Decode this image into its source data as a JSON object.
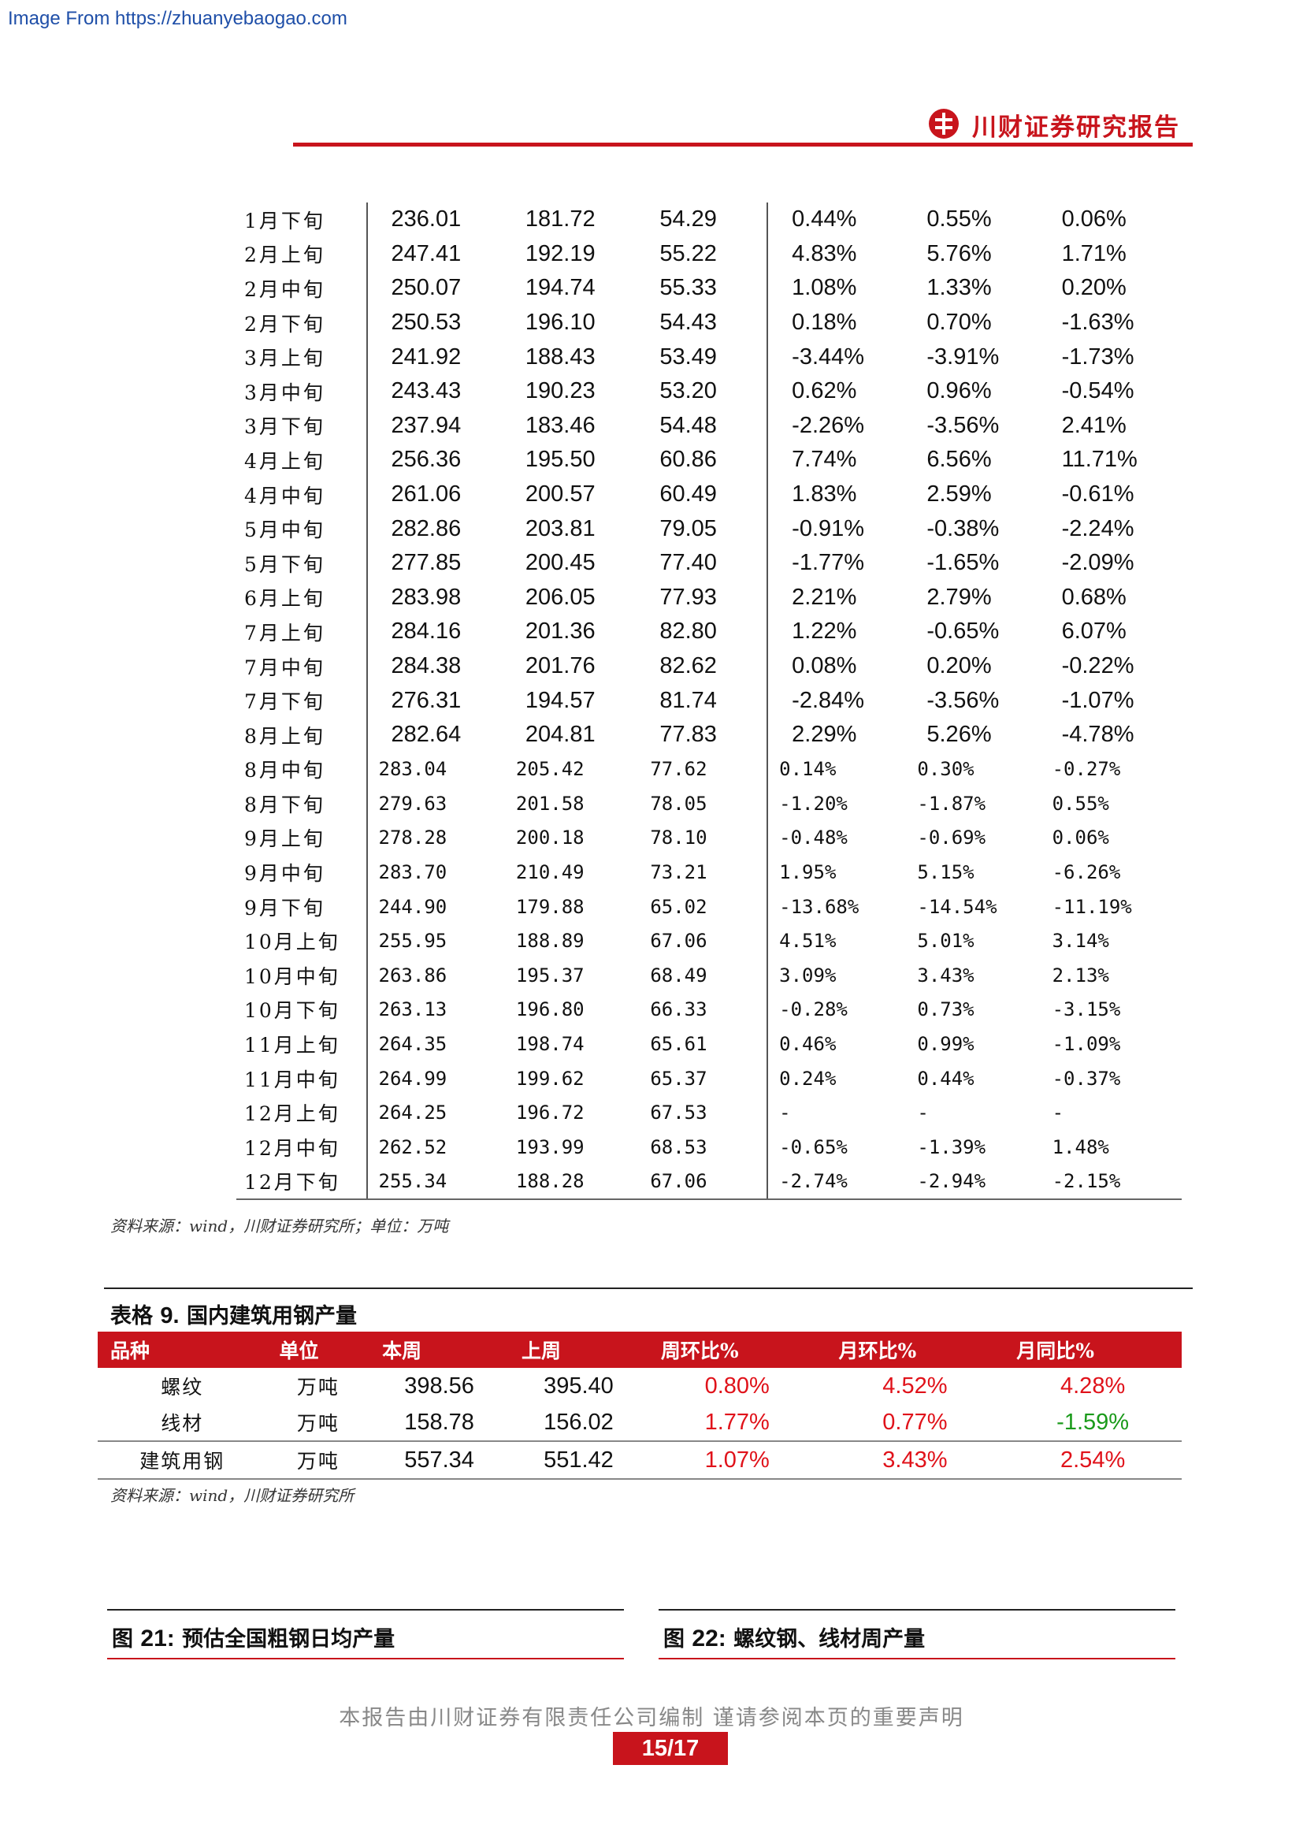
{
  "watermark": "Image From https://zhuanyebaogao.com",
  "header": {
    "brand": "川财证券研究报告"
  },
  "table1": {
    "rows": [
      {
        "period": "1月下旬",
        "a": "236.01",
        "b": "181.72",
        "c": "54.29",
        "d": "0.44%",
        "e": "0.55%",
        "f": "0.06%"
      },
      {
        "period": "2月上旬",
        "a": "247.41",
        "b": "192.19",
        "c": "55.22",
        "d": "4.83%",
        "e": "5.76%",
        "f": "1.71%"
      },
      {
        "period": "2月中旬",
        "a": "250.07",
        "b": "194.74",
        "c": "55.33",
        "d": "1.08%",
        "e": "1.33%",
        "f": "0.20%"
      },
      {
        "period": "2月下旬",
        "a": "250.53",
        "b": "196.10",
        "c": "54.43",
        "d": "0.18%",
        "e": "0.70%",
        "f": "-1.63%"
      },
      {
        "period": "3月上旬",
        "a": "241.92",
        "b": "188.43",
        "c": "53.49",
        "d": "-3.44%",
        "e": "-3.91%",
        "f": "-1.73%"
      },
      {
        "period": "3月中旬",
        "a": "243.43",
        "b": "190.23",
        "c": "53.20",
        "d": "0.62%",
        "e": "0.96%",
        "f": "-0.54%"
      },
      {
        "period": "3月下旬",
        "a": "237.94",
        "b": "183.46",
        "c": "54.48",
        "d": "-2.26%",
        "e": "-3.56%",
        "f": "2.41%"
      },
      {
        "period": "4月上旬",
        "a": "256.36",
        "b": "195.50",
        "c": "60.86",
        "d": "7.74%",
        "e": "6.56%",
        "f": "11.71%"
      },
      {
        "period": "4月中旬",
        "a": "261.06",
        "b": "200.57",
        "c": "60.49",
        "d": "1.83%",
        "e": "2.59%",
        "f": "-0.61%"
      },
      {
        "period": "5月中旬",
        "a": "282.86",
        "b": "203.81",
        "c": "79.05",
        "d": "-0.91%",
        "e": "-0.38%",
        "f": "-2.24%"
      },
      {
        "period": "5月下旬",
        "a": "277.85",
        "b": "200.45",
        "c": "77.40",
        "d": "-1.77%",
        "e": "-1.65%",
        "f": "-2.09%"
      },
      {
        "period": "6月上旬",
        "a": "283.98",
        "b": "206.05",
        "c": "77.93",
        "d": "2.21%",
        "e": "2.79%",
        "f": "0.68%"
      },
      {
        "period": "7月上旬",
        "a": "284.16",
        "b": "201.36",
        "c": "82.80",
        "d": "1.22%",
        "e": "-0.65%",
        "f": "6.07%"
      },
      {
        "period": "7月中旬",
        "a": "284.38",
        "b": "201.76",
        "c": "82.62",
        "d": "0.08%",
        "e": "0.20%",
        "f": "-0.22%"
      },
      {
        "period": "7月下旬",
        "a": "276.31",
        "b": "194.57",
        "c": "81.74",
        "d": "-2.84%",
        "e": "-3.56%",
        "f": "-1.07%"
      },
      {
        "period": "8月上旬",
        "a": "282.64",
        "b": "204.81",
        "c": "77.83",
        "d": "2.29%",
        "e": "5.26%",
        "f": "-4.78%"
      },
      {
        "period": "8月中旬",
        "a": "283.04",
        "b": "205.42",
        "c": "77.62",
        "d": "0.14%",
        "e": "0.30%",
        "f": "-0.27%"
      },
      {
        "period": "8月下旬",
        "a": "279.63",
        "b": "201.58",
        "c": "78.05",
        "d": "-1.20%",
        "e": "-1.87%",
        "f": "0.55%"
      },
      {
        "period": "9月上旬",
        "a": "278.28",
        "b": "200.18",
        "c": "78.10",
        "d": "-0.48%",
        "e": "-0.69%",
        "f": "0.06%"
      },
      {
        "period": "9月中旬",
        "a": "283.70",
        "b": "210.49",
        "c": "73.21",
        "d": "1.95%",
        "e": "5.15%",
        "f": "-6.26%"
      },
      {
        "period": "9月下旬",
        "a": "244.90",
        "b": "179.88",
        "c": "65.02",
        "d": "-13.68%",
        "e": "-14.54%",
        "f": "-11.19%"
      },
      {
        "period": "10月上旬",
        "a": "255.95",
        "b": "188.89",
        "c": "67.06",
        "d": "4.51%",
        "e": "5.01%",
        "f": "3.14%"
      },
      {
        "period": "10月中旬",
        "a": "263.86",
        "b": "195.37",
        "c": "68.49",
        "d": "3.09%",
        "e": "3.43%",
        "f": "2.13%"
      },
      {
        "period": "10月下旬",
        "a": "263.13",
        "b": "196.80",
        "c": "66.33",
        "d": "-0.28%",
        "e": "0.73%",
        "f": "-3.15%"
      },
      {
        "period": "11月上旬",
        "a": "264.35",
        "b": "198.74",
        "c": "65.61",
        "d": "0.46%",
        "e": "0.99%",
        "f": "-1.09%"
      },
      {
        "period": "11月中旬",
        "a": "264.99",
        "b": "199.62",
        "c": "65.37",
        "d": "0.24%",
        "e": "0.44%",
        "f": "-0.37%"
      },
      {
        "period": "12月上旬",
        "a": "264.25",
        "b": "196.72",
        "c": "67.53",
        "d": "-",
        "e": "-",
        "f": "-"
      },
      {
        "period": "12月中旬",
        "a": "262.52",
        "b": "193.99",
        "c": "68.53",
        "d": "-0.65%",
        "e": "-1.39%",
        "f": "1.48%"
      },
      {
        "period": "12月下旬",
        "a": "255.34",
        "b": "188.28",
        "c": "67.06",
        "d": "-2.74%",
        "e": "-2.94%",
        "f": "-2.15%"
      }
    ],
    "source": "资料来源：wind，川财证券研究所；单位：万吨"
  },
  "table9": {
    "title_prefix": "表格",
    "title_num": "9.",
    "title": "国内建筑用钢产量",
    "headers": [
      "品种",
      "单位",
      "本周",
      "上周",
      "周环比%",
      "月环比%",
      "月同比%"
    ],
    "rows": [
      {
        "name": "螺纹",
        "unit": "万吨",
        "cur": "398.56",
        "prev": "395.40",
        "wow": "0.80%",
        "mom": "4.52%",
        "yoy": "4.28%"
      },
      {
        "name": "线材",
        "unit": "万吨",
        "cur": "158.78",
        "prev": "156.02",
        "wow": "1.77%",
        "mom": "0.77%",
        "yoy": "-1.59%"
      },
      {
        "name": "建筑用钢",
        "unit": "万吨",
        "cur": "557.34",
        "prev": "551.42",
        "wow": "1.07%",
        "mom": "3.43%",
        "yoy": "2.54%"
      }
    ],
    "colors": {
      "positive": "#e0121a",
      "negative": "#1a9a1a"
    },
    "source": "资料来源：wind，川财证券研究所"
  },
  "figures": [
    {
      "prefix": "图",
      "num": "21:",
      "title": "预估全国粗钢日均产量"
    },
    {
      "prefix": "图",
      "num": "22:",
      "title": "螺纹钢、线材周产量"
    }
  ],
  "footer": {
    "statement": "本报告由川财证券有限责任公司编制 谨请参阅本页的重要声明",
    "page": "15/17"
  }
}
